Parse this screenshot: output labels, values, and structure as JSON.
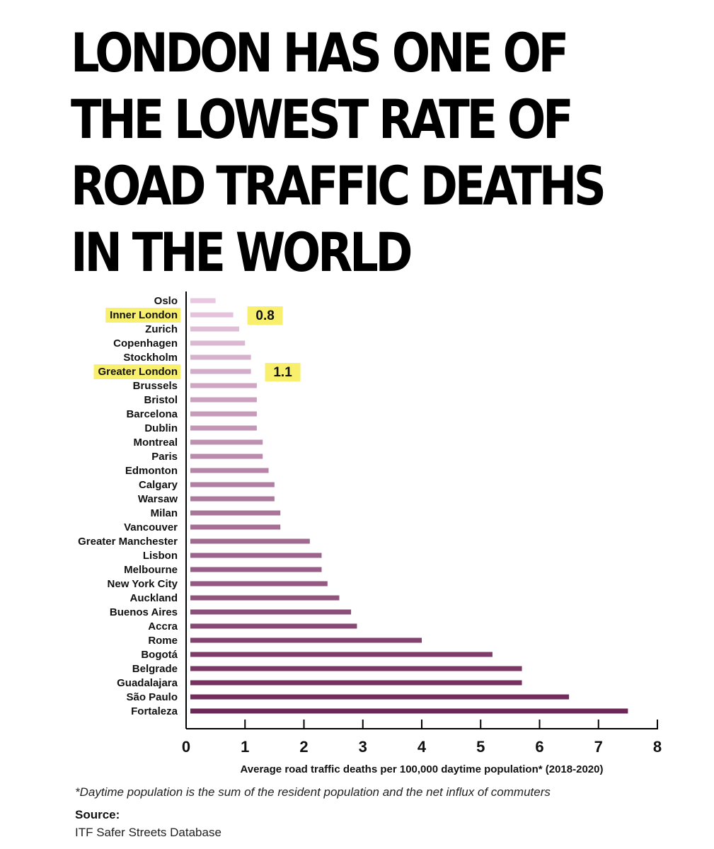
{
  "title_lines": [
    "LONDON HAS ONE OF",
    "THE LOWEST RATE OF",
    "ROAD TRAFFIC DEATHS",
    "IN THE WORLD"
  ],
  "chart_data": {
    "type": "bar",
    "orientation": "horizontal",
    "categories": [
      "Oslo",
      "Inner London",
      "Zurich",
      "Copenhagen",
      "Stockholm",
      "Greater London",
      "Brussels",
      "Bristol",
      "Barcelona",
      "Dublin",
      "Montreal",
      "Paris",
      "Edmonton",
      "Calgary",
      "Warsaw",
      "Milan",
      "Vancouver",
      "Greater Manchester",
      "Lisbon",
      "Melbourne",
      "New York City",
      "Auckland",
      "Buenos Aires",
      "Accra",
      "Rome",
      "Bogotá",
      "Belgrade",
      "Guadalajara",
      "São Paulo",
      "Fortaleza"
    ],
    "values": [
      0.5,
      0.8,
      0.9,
      1.0,
      1.1,
      1.1,
      1.2,
      1.2,
      1.2,
      1.2,
      1.3,
      1.3,
      1.4,
      1.5,
      1.5,
      1.6,
      1.6,
      2.1,
      2.3,
      2.3,
      2.4,
      2.6,
      2.8,
      2.9,
      4.0,
      5.2,
      5.7,
      5.7,
      6.5,
      7.5
    ],
    "highlighted": [
      "Inner London",
      "Greater London"
    ],
    "annotations": [
      {
        "category": "Inner London",
        "label": "0.8"
      },
      {
        "category": "Greater London",
        "label": "1.1"
      }
    ],
    "xlim": [
      0,
      8
    ],
    "xticks": [
      "0",
      "1",
      "2",
      "3",
      "4",
      "5",
      "6",
      "7",
      "8"
    ],
    "xlabel": "Average road traffic deaths per 100,000 daytime population* (2018-2020)",
    "colors": {
      "light": "#e8c8e0",
      "dark": "#6e2658",
      "highlight": "#f8f06c"
    }
  },
  "footnote": "*Daytime population is the sum of the resident population and the net influx of commuters",
  "source_label": "Source:",
  "source_text": "ITF Safer Streets Database"
}
